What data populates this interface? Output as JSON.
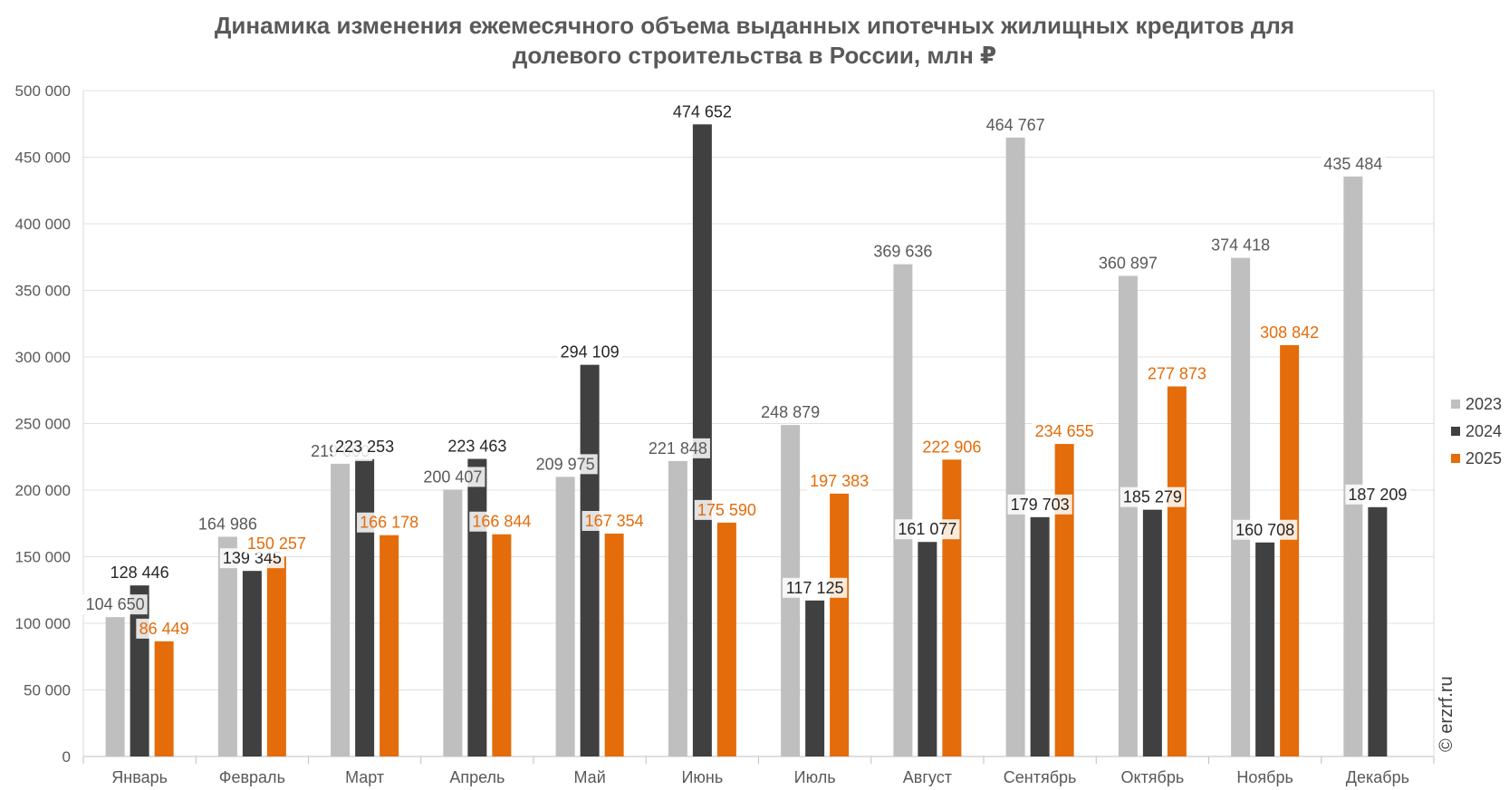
{
  "chart_data": {
    "type": "bar",
    "title_line1": "Динамика изменения ежемесячного объема выданных ипотечных жилищных кредитов для",
    "title_line2": "долевого строительства в России, млн ₽",
    "xlabel": "",
    "ylabel": "",
    "ylim": [
      0,
      500000
    ],
    "yticks": [
      0,
      50000,
      100000,
      150000,
      200000,
      250000,
      300000,
      350000,
      400000,
      450000,
      500000
    ],
    "ytick_labels": [
      "0",
      "50 000",
      "100 000",
      "150 000",
      "200 000",
      "250 000",
      "300 000",
      "350 000",
      "400 000",
      "450 000",
      "500 000"
    ],
    "grid": "horizontal",
    "legend_position": "right",
    "categories": [
      "Январь",
      "Февраль",
      "Март",
      "Апрель",
      "Май",
      "Июнь",
      "Июль",
      "Август",
      "Сентябрь",
      "Октябрь",
      "Ноябрь",
      "Декабрь"
    ],
    "series": [
      {
        "name": "2023",
        "color": "#bfbfbf",
        "label_color": "#595959",
        "values": [
          104650,
          164986,
          219800,
          200407,
          209975,
          221848,
          248879,
          369636,
          464767,
          360897,
          374418,
          435484
        ],
        "labels": [
          "104 650",
          "164 986",
          "219 800",
          "200 407",
          "209 975",
          "221 848",
          "248 879",
          "369 636",
          "464 767",
          "360 897",
          "374 418",
          "435 484"
        ]
      },
      {
        "name": "2024",
        "color": "#404040",
        "label_color": "#262626",
        "values": [
          128446,
          139345,
          223253,
          223463,
          294109,
          474652,
          117125,
          161077,
          179703,
          185279,
          160708,
          187209
        ],
        "labels": [
          "128 446",
          "139 345",
          "223 253",
          "223 463",
          "294 109",
          "474 652",
          "117 125",
          "161 077",
          "179 703",
          "185 279",
          "160 708",
          "187 209"
        ]
      },
      {
        "name": "2025",
        "color": "#e46c0a",
        "label_color": "#e46c0a",
        "values": [
          86449,
          150257,
          166178,
          166844,
          167354,
          175590,
          197383,
          222906,
          234655,
          277873,
          308842,
          null
        ],
        "labels": [
          "86 449",
          "150 257",
          "166 178",
          "166 844",
          "167 354",
          "175 590",
          "197 383",
          "222 906",
          "234 655",
          "277 873",
          "308 842",
          null
        ]
      }
    ]
  },
  "copyright": "© erzrf.ru"
}
